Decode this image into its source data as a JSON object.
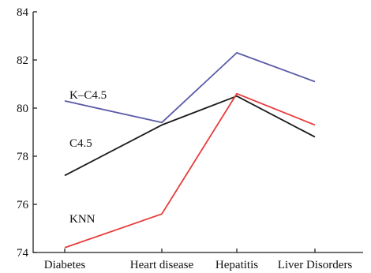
{
  "chart_data": {
    "type": "line",
    "categories": [
      "Diabetes",
      "Heart disease",
      "Hepatitis",
      "Liver Disorders"
    ],
    "series": [
      {
        "name": "K–C4.5",
        "values": [
          80.3,
          79.4,
          82.3,
          81.1
        ],
        "color": "#5a5aa8"
      },
      {
        "name": "C4.5",
        "values": [
          77.2,
          79.3,
          80.5,
          78.8
        ],
        "color": "#1a1a1a"
      },
      {
        "name": "KNN",
        "values": [
          74.2,
          75.6,
          80.6,
          79.3
        ],
        "color": "#e83a3a"
      }
    ],
    "ylim": [
      74,
      84
    ],
    "yticks": [
      74,
      76,
      78,
      80,
      82,
      84
    ],
    "title": "",
    "xlabel": "",
    "ylabel": "",
    "grid": false
  }
}
